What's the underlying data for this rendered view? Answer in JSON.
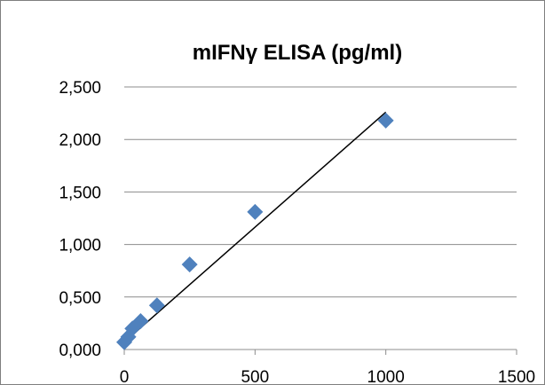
{
  "chart_data": {
    "type": "scatter",
    "title": "mIFNγ ELISA (pg/ml)",
    "xlabel": "",
    "ylabel": "",
    "xlim": [
      0,
      1500
    ],
    "ylim": [
      0,
      2.5
    ],
    "x_ticks": [
      0,
      500,
      1000,
      1500
    ],
    "x_tick_labels": [
      "0",
      "500",
      "1000",
      "1500"
    ],
    "y_ticks": [
      0,
      0.5,
      1.0,
      1.5,
      2.0,
      2.5
    ],
    "y_tick_labels": [
      "0,000",
      "0,500",
      "1,000",
      "1,500",
      "2,000",
      "2,500"
    ],
    "grid": true,
    "legend": "none",
    "marker_color": "#4f81bd",
    "trendline_color": "#000000",
    "series": [
      {
        "points": [
          {
            "x": 0,
            "y": 0.07
          },
          {
            "x": 15.6,
            "y": 0.12
          },
          {
            "x": 31.25,
            "y": 0.2
          },
          {
            "x": 62.5,
            "y": 0.27
          },
          {
            "x": 125,
            "y": 0.42
          },
          {
            "x": 250,
            "y": 0.81
          },
          {
            "x": 500,
            "y": 1.31
          },
          {
            "x": 1000,
            "y": 2.18
          }
        ]
      }
    ],
    "trendline": {
      "type": "linear",
      "x_start": 0,
      "x_end": 1000,
      "y_start": 0.07,
      "y_end": 2.26
    }
  }
}
